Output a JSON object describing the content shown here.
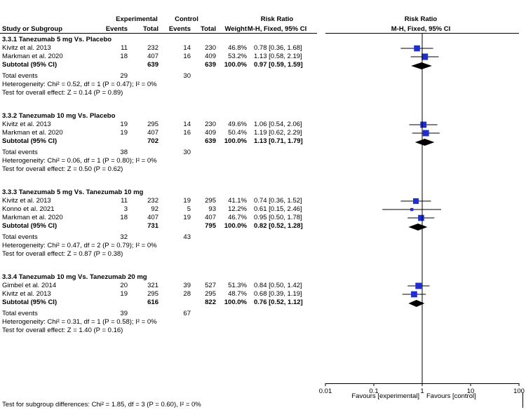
{
  "header": {
    "experimental": "Experimental",
    "control": "Control",
    "risk_ratio_left": "Risk Ratio",
    "risk_ratio_right": "Risk Ratio",
    "col_study": "Study or Subgroup",
    "col_exp_events": "Events",
    "col_exp_total": "Total",
    "col_ctl_events": "Events",
    "col_ctl_total": "Total",
    "col_weight": "Weight",
    "col_method_left": "M-H, Fixed, 95% CI",
    "col_method_right": "M-H, Fixed, 95% CI"
  },
  "footer": {
    "subgroup_differences": "Test for subgroup differences: Chi² = 1.85, df = 3 (P = 0.60), I² = 0%"
  },
  "chart_data": {
    "type": "forest",
    "scale": "log",
    "x_ticks": [
      0.01,
      0.1,
      1,
      10,
      100
    ],
    "x_tick_labels": [
      "0.01",
      "0.1",
      "1",
      "10",
      "100"
    ],
    "favours_left": "Favours [experimental]",
    "favours_right": "Favours [control]",
    "subgroups": [
      {
        "title": "3.3.1 Tanezumab 5 mg Vs. Placebo",
        "studies": [
          {
            "name": "Kivitz et al. 2013",
            "exp_events": "11",
            "exp_total": "232",
            "ctl_events": "14",
            "ctl_total": "230",
            "weight": "46.8%",
            "ci_text": "0.78 [0.36, 1.68]",
            "rr": 0.78,
            "lo": 0.36,
            "hi": 1.68,
            "w": 46.8
          },
          {
            "name": "Markman et al. 2020",
            "exp_events": "18",
            "exp_total": "407",
            "ctl_events": "16",
            "ctl_total": "409",
            "weight": "53.2%",
            "ci_text": "1.13 [0.58, 2.19]",
            "rr": 1.13,
            "lo": 0.58,
            "hi": 2.19,
            "w": 53.2
          }
        ],
        "subtotal": {
          "label": "Subtotal (95% CI)",
          "exp_total": "639",
          "ctl_total": "639",
          "weight": "100.0%",
          "ci_text": "0.97 [0.59, 1.59]",
          "rr": 0.97,
          "lo": 0.59,
          "hi": 1.59
        },
        "total_events_label": "Total events",
        "exp_events_total": "29",
        "ctl_events_total": "30",
        "heterogeneity": "Heterogeneity: Chi² = 0.52, df = 1 (P = 0.47); I² = 0%",
        "overall_effect": "Test for overall effect: Z = 0.14 (P = 0.89)"
      },
      {
        "title": "3.3.2 Tanezumab 10 mg Vs. Placebo",
        "studies": [
          {
            "name": "Kivitz et al. 2013",
            "exp_events": "19",
            "exp_total": "295",
            "ctl_events": "14",
            "ctl_total": "230",
            "weight": "49.6%",
            "ci_text": "1.06 [0.54, 2.06]",
            "rr": 1.06,
            "lo": 0.54,
            "hi": 2.06,
            "w": 49.6
          },
          {
            "name": "Markman et al. 2020",
            "exp_events": "19",
            "exp_total": "407",
            "ctl_events": "16",
            "ctl_total": "409",
            "weight": "50.4%",
            "ci_text": "1.19 [0.62, 2.29]",
            "rr": 1.19,
            "lo": 0.62,
            "hi": 2.29,
            "w": 50.4
          }
        ],
        "subtotal": {
          "label": "Subtotal (95% CI)",
          "exp_total": "702",
          "ctl_total": "639",
          "weight": "100.0%",
          "ci_text": "1.13 [0.71, 1.79]",
          "rr": 1.13,
          "lo": 0.71,
          "hi": 1.79
        },
        "total_events_label": "Total events",
        "exp_events_total": "38",
        "ctl_events_total": "30",
        "heterogeneity": "Heterogeneity: Chi² = 0.06, df = 1 (P = 0.80); I² = 0%",
        "overall_effect": "Test for overall effect: Z = 0.50 (P = 0.62)"
      },
      {
        "title": "3.3.3 Tanezumab 5 mg Vs. Tanezumab 10 mg",
        "studies": [
          {
            "name": "Kivitz et al. 2013",
            "exp_events": "11",
            "exp_total": "232",
            "ctl_events": "19",
            "ctl_total": "295",
            "weight": "41.1%",
            "ci_text": "0.74 [0.36, 1.52]",
            "rr": 0.74,
            "lo": 0.36,
            "hi": 1.52,
            "w": 41.1
          },
          {
            "name": "Konno et al. 2021",
            "exp_events": "3",
            "exp_total": "92",
            "ctl_events": "5",
            "ctl_total": "93",
            "weight": "12.2%",
            "ci_text": "0.61 [0.15, 2.46]",
            "rr": 0.61,
            "lo": 0.15,
            "hi": 2.46,
            "w": 12.2
          },
          {
            "name": "Markman et al. 2020",
            "exp_events": "18",
            "exp_total": "407",
            "ctl_events": "19",
            "ctl_total": "407",
            "weight": "46.7%",
            "ci_text": "0.95 [0.50, 1.78]",
            "rr": 0.95,
            "lo": 0.5,
            "hi": 1.78,
            "w": 46.7
          }
        ],
        "subtotal": {
          "label": "Subtotal (95% CI)",
          "exp_total": "731",
          "ctl_total": "795",
          "weight": "100.0%",
          "ci_text": "0.82 [0.52, 1.28]",
          "rr": 0.82,
          "lo": 0.52,
          "hi": 1.28
        },
        "total_events_label": "Total events",
        "exp_events_total": "32",
        "ctl_events_total": "43",
        "heterogeneity": "Heterogeneity: Chi² = 0.47, df = 2 (P = 0.79); I² = 0%",
        "overall_effect": "Test for overall effect: Z = 0.87 (P = 0.38)"
      },
      {
        "title": "3.3.4 Tanezumab 10 mg Vs. Tanezumab 20 mg",
        "studies": [
          {
            "name": "Gimbel et al. 2014",
            "exp_events": "20",
            "exp_total": "321",
            "ctl_events": "39",
            "ctl_total": "527",
            "weight": "51.3%",
            "ci_text": "0.84 [0.50, 1.42]",
            "rr": 0.84,
            "lo": 0.5,
            "hi": 1.42,
            "w": 51.3
          },
          {
            "name": "Kivitz et al. 2013",
            "exp_events": "19",
            "exp_total": "295",
            "ctl_events": "28",
            "ctl_total": "295",
            "weight": "48.7%",
            "ci_text": "0.68 [0.39, 1.19]",
            "rr": 0.68,
            "lo": 0.39,
            "hi": 1.19,
            "w": 48.7
          }
        ],
        "subtotal": {
          "label": "Subtotal (95% CI)",
          "exp_total": "616",
          "ctl_total": "822",
          "weight": "100.0%",
          "ci_text": "0.76 [0.52, 1.12]",
          "rr": 0.76,
          "lo": 0.52,
          "hi": 1.12
        },
        "total_events_label": "Total events",
        "exp_events_total": "39",
        "ctl_events_total": "67",
        "heterogeneity": "Heterogeneity: Chi² = 0.31, df = 1 (P = 0.58); I² = 0%",
        "overall_effect": "Test for overall effect: Z = 1.40 (P = 0.16)"
      }
    ]
  },
  "colors": {
    "study_marker": "#1f2fcf",
    "diamond": "#000000",
    "line": "#000000"
  }
}
